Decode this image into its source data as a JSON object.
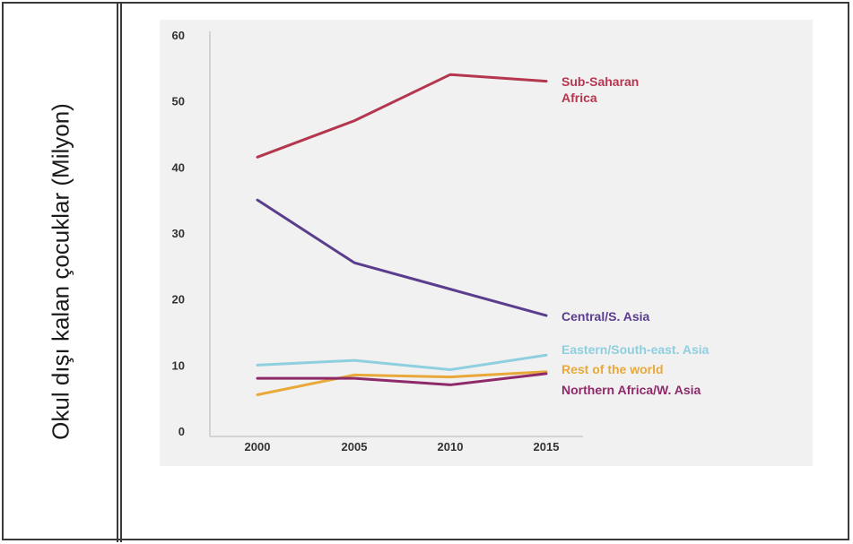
{
  "side_label": "Okul dışı kalan çocuklar (Milyon)",
  "chart_data": {
    "type": "line",
    "x": [
      2000,
      2005,
      2010,
      2015
    ],
    "ylim": [
      0,
      60
    ],
    "yticks": [
      0,
      10,
      20,
      30,
      40,
      50,
      60
    ],
    "grid": false,
    "series": [
      {
        "name": "Sub-Saharan Africa",
        "label_lines": [
          "Sub-Saharan",
          "Africa"
        ],
        "values": [
          41.5,
          47,
          54,
          53
        ],
        "color": "#b5364f"
      },
      {
        "name": "Central/S. Asia",
        "label_lines": [
          "Central/S. Asia"
        ],
        "values": [
          35,
          25.5,
          21.5,
          17.5
        ],
        "color": "#5a3d8c"
      },
      {
        "name": "Eastern/South-east. Asia",
        "label_lines": [
          "Eastern/South-east. Asia"
        ],
        "values": [
          10,
          10.7,
          9.3,
          11.5
        ],
        "color": "#8ecfe0"
      },
      {
        "name": "Rest of the world",
        "label_lines": [
          "Rest of the world"
        ],
        "values": [
          5.5,
          8.5,
          8.2,
          9
        ],
        "color": "#e8a93a"
      },
      {
        "name": "Northern Africa/W. Asia",
        "label_lines": [
          "Northern Africa/W. Asia"
        ],
        "values": [
          8,
          8,
          7,
          8.7
        ],
        "color": "#8e2a6a"
      }
    ]
  }
}
